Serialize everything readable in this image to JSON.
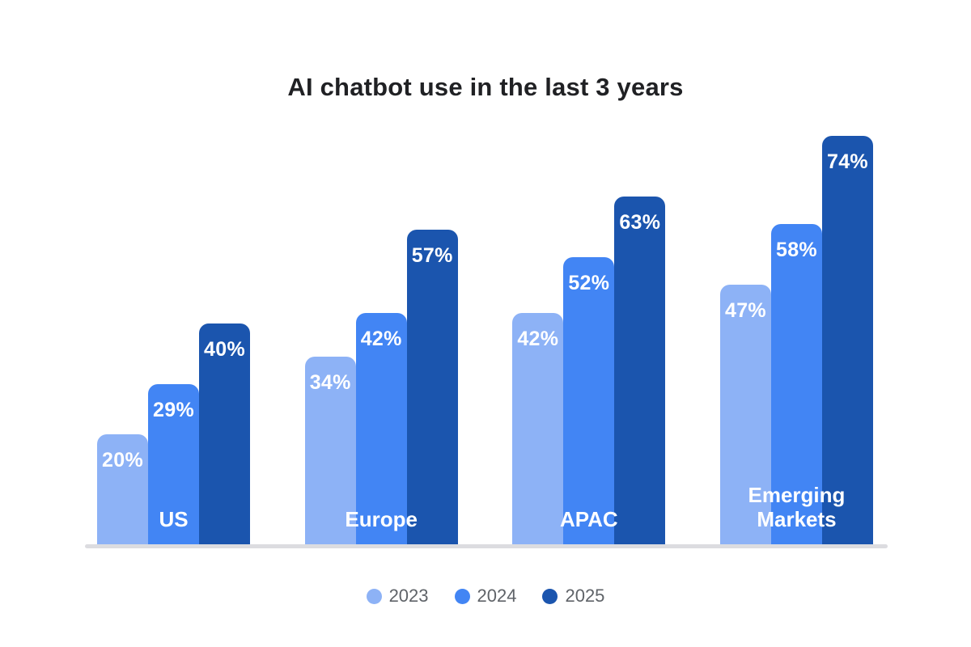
{
  "chart_data": {
    "type": "bar",
    "title": "AI chatbot use in the last 3 years",
    "categories": [
      "US",
      "Europe",
      "APAC",
      "Emerging Markets"
    ],
    "series": [
      {
        "name": "2023",
        "color": "#8DB2F6",
        "values": [
          20,
          34,
          42,
          47
        ]
      },
      {
        "name": "2024",
        "color": "#4285F4",
        "values": [
          29,
          42,
          52,
          58
        ]
      },
      {
        "name": "2025",
        "color": "#1B55AE",
        "values": [
          40,
          57,
          63,
          74
        ]
      }
    ],
    "value_suffix": "%",
    "ylim": [
      0,
      74
    ],
    "grid": false,
    "axes_visible": false,
    "legend_position": "bottom",
    "colors": {
      "title_text": "#202124",
      "bar_value_text": "#ffffff",
      "category_label_text": "#ffffff",
      "baseline": "#dcdce0",
      "legend_text": "#5f6368",
      "background": "#ffffff"
    }
  }
}
